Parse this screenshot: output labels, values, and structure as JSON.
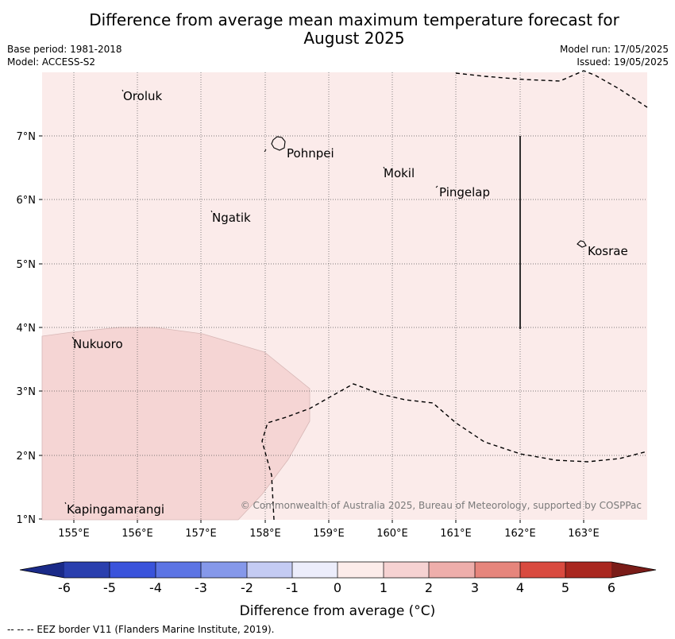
{
  "title_line1": "Difference from average mean maximum temperature forecast for",
  "title_line2": "August 2025",
  "base_period": "Base period: 1981-2018",
  "model": "Model: ACCESS-S2",
  "model_run": "Model run: 17/05/2025",
  "issued": "Issued: 19/05/2025",
  "copyright": "© Commonwealth of Australia 2025, Bureau of Meteorology, supported by COSPPac",
  "map": {
    "lon_range": [
      154.5,
      164.0
    ],
    "lat_range": [
      1.0,
      8.0
    ],
    "lon_ticks": [
      "155°E",
      "156°E",
      "157°E",
      "158°E",
      "159°E",
      "160°E",
      "161°E",
      "162°E",
      "163°E"
    ],
    "lat_ticks": [
      "1°N",
      "2°N",
      "3°N",
      "4°N",
      "5°N",
      "6°N",
      "7°N"
    ],
    "background_category": "0 to 1",
    "anomaly_region_category": "1 to 2",
    "places": [
      {
        "name": "Oroluk",
        "lon": 155.75,
        "lat": 7.62
      },
      {
        "name": "Pohnpei",
        "lon": 158.22,
        "lat": 6.87
      },
      {
        "name": "Mokil",
        "lon": 159.78,
        "lat": 6.42
      },
      {
        "name": "Pingelap",
        "lon": 160.7,
        "lat": 6.2
      },
      {
        "name": "Ngatik",
        "lon": 157.15,
        "lat": 5.8
      },
      {
        "name": "Kosrae",
        "lon": 162.98,
        "lat": 5.3
      },
      {
        "name": "Nukuoro",
        "lon": 154.97,
        "lat": 3.86
      },
      {
        "name": "Kapingamarangi",
        "lon": 154.86,
        "lat": 1.26
      }
    ]
  },
  "colorbar": {
    "label": "Difference from average (°C)",
    "tick_labels": [
      "-6",
      "-5",
      "-4",
      "-3",
      "-2",
      "-1",
      "0",
      "1",
      "2",
      "3",
      "4",
      "5",
      "6"
    ],
    "colors": [
      "#2a3fae",
      "#3a53db",
      "#5c74e4",
      "#8598ea",
      "#c4cbf3",
      "#ecedfb",
      "#fcecea",
      "#f6d2d2",
      "#eeaeab",
      "#e6857c",
      "#d94a3f",
      "#a9271f"
    ],
    "under_color": "#1a2a88",
    "over_color": "#7a1c18"
  },
  "legend_line": "-- -- -- EEZ border V11 (Flanders Marine Institute, 2019)."
}
